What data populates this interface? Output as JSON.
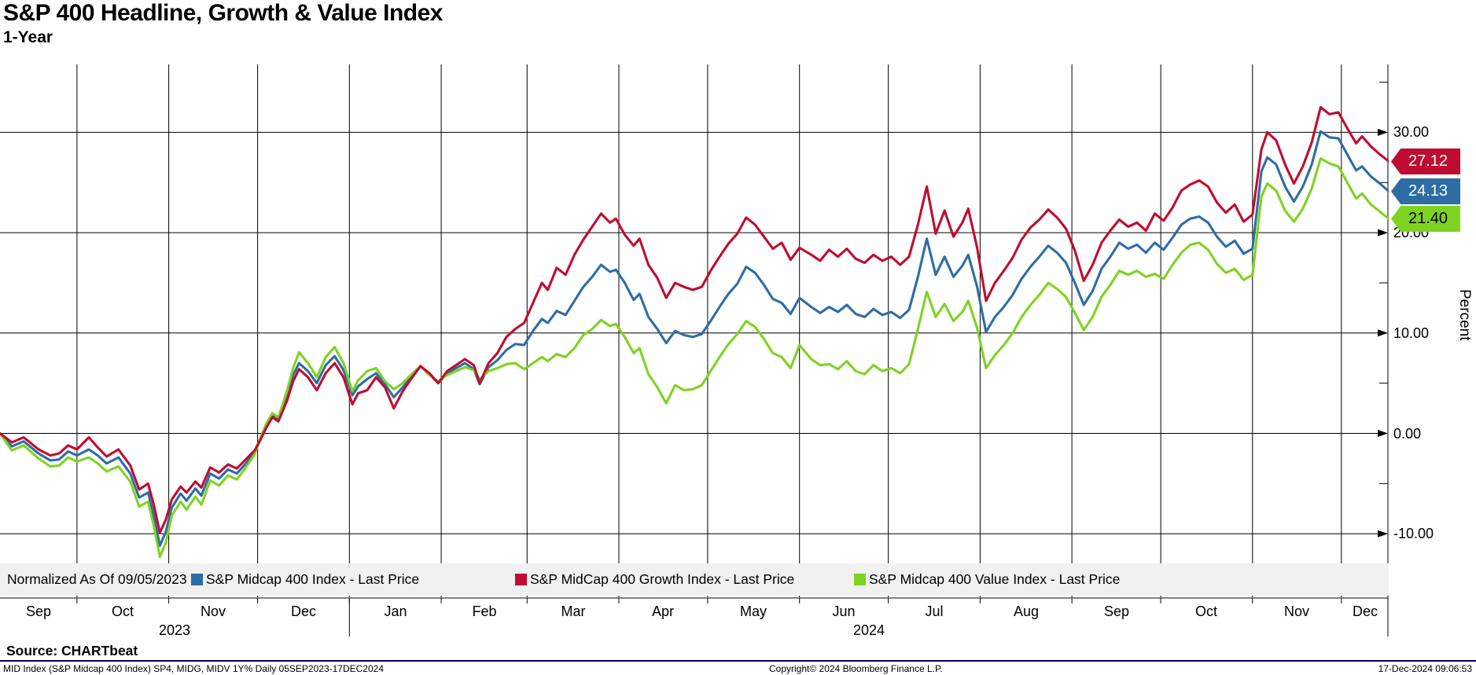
{
  "header": {
    "title": "S&P 400 Headline, Growth & Value Index",
    "subtitle": "1-Year"
  },
  "y_axis": {
    "label": "Percent",
    "tick_labels": [
      "30.00",
      "20.00",
      "10.00",
      "0.00",
      "-10.00"
    ]
  },
  "x_axis": {
    "month_labels": [
      "Sep",
      "Oct",
      "Nov",
      "Dec",
      "Jan",
      "Feb",
      "Mar",
      "Apr",
      "May",
      "Jun",
      "Jul",
      "Aug",
      "Sep",
      "Oct",
      "Nov",
      "Dec"
    ],
    "year_labels": [
      "2023",
      "2024"
    ]
  },
  "price_tags": [
    {
      "value": "27.12",
      "color": "#c00c30",
      "text_color": "#ffffff"
    },
    {
      "value": "24.13",
      "color": "#2e6da4",
      "text_color": "#ffffff"
    },
    {
      "value": "21.40",
      "color": "#7ed321",
      "text_color": "#000000"
    }
  ],
  "legend": {
    "note": "Normalized As Of 09/05/2023",
    "items": [
      {
        "label": "S&P Midcap 400 Index - Last Price",
        "color": "#2e6da4"
      },
      {
        "label": "S&P MidCap 400 Growth Index - Last Price",
        "color": "#c00c30"
      },
      {
        "label": "S&P Midcap 400 Value Index - Last Price",
        "color": "#7ed321"
      }
    ]
  },
  "footer": {
    "source": "Source: CHARTbeat",
    "meta": "MID Index (S&P Midcap 400 Index) SP4, MIDG, MIDV 1Y%  Daily 05SEP2023-17DEC2024",
    "copyright": "Copyright© 2024 Bloomberg Finance L.P.",
    "timestamp": "17-Dec-2024 09:06:53"
  },
  "chart_data": {
    "type": "line",
    "title": "S&P 400 Headline, Growth & Value Index (1-Year)",
    "xlabel": "Date (05SEP2023 - 17DEC2024)",
    "ylabel": "Percent",
    "x_unit": "days since 2023-09-05",
    "x_range": [
      0,
      469
    ],
    "ylim": [
      -16,
      37
    ],
    "grid": true,
    "legend_position": "bottom",
    "y_major": [
      30,
      20,
      10,
      0,
      -10
    ],
    "y_minor": [
      35,
      25,
      15,
      5,
      -5
    ],
    "month_gridline_days": [
      26,
      57,
      87,
      118,
      149,
      178,
      209,
      239,
      270,
      300,
      331,
      362,
      392,
      423,
      453
    ],
    "year_separator_day": 118,
    "days": [
      0,
      4,
      8,
      13,
      17,
      20,
      23,
      26,
      30,
      33,
      36,
      40,
      44,
      47,
      50,
      52,
      54,
      56,
      58,
      61,
      63,
      66,
      68,
      71,
      74,
      77,
      80,
      83,
      86,
      88,
      90,
      92,
      94,
      97,
      99,
      101,
      104,
      107,
      110,
      113,
      116,
      119,
      121,
      124,
      127,
      130,
      133,
      136,
      139,
      142,
      145,
      148,
      151,
      154,
      157,
      160,
      162,
      165,
      168,
      171,
      174,
      177,
      180,
      183,
      185,
      188,
      191,
      194,
      197,
      200,
      203,
      206,
      208,
      211,
      214,
      216,
      219,
      222,
      225,
      228,
      231,
      234,
      237,
      240,
      243,
      246,
      249,
      252,
      255,
      258,
      261,
      264,
      267,
      270,
      274,
      277,
      280,
      283,
      286,
      289,
      292,
      295,
      298,
      301,
      304,
      307,
      310,
      313,
      316,
      319,
      322,
      325,
      327,
      330,
      333,
      336,
      339,
      342,
      345,
      348,
      351,
      354,
      357,
      360,
      363,
      366,
      369,
      372,
      375,
      378,
      381,
      384,
      387,
      390,
      393,
      396,
      399,
      402,
      405,
      408,
      411,
      414,
      417,
      420,
      423,
      426,
      428,
      431,
      434,
      437,
      440,
      443,
      446,
      449,
      452,
      455,
      458,
      460,
      463,
      466,
      469
    ],
    "series": [
      {
        "name": "S&P Midcap 400 Index - Last Price",
        "color": "#2e6da4",
        "last": 24.13,
        "values": [
          0,
          -1.3,
          -0.8,
          -2.0,
          -2.7,
          -2.6,
          -1.8,
          -2.2,
          -1.6,
          -2.2,
          -3.0,
          -2.4,
          -4.0,
          -6.4,
          -5.9,
          -8.3,
          -11.2,
          -9.8,
          -7.4,
          -6.0,
          -6.7,
          -5.5,
          -6.2,
          -4.0,
          -4.5,
          -3.6,
          -4.0,
          -3.0,
          -1.9,
          -0.5,
          0.8,
          1.8,
          1.4,
          3.8,
          5.8,
          7.0,
          6.2,
          5.0,
          6.8,
          7.7,
          6.3,
          3.8,
          4.7,
          5.4,
          6.0,
          4.9,
          3.6,
          4.6,
          5.7,
          6.7,
          5.9,
          5.0,
          6.0,
          6.5,
          7.0,
          6.4,
          4.9,
          6.6,
          7.3,
          8.3,
          8.9,
          8.8,
          10.2,
          11.4,
          11.0,
          12.2,
          11.8,
          13.2,
          14.6,
          15.6,
          16.8,
          16.1,
          16.3,
          15.0,
          13.3,
          13.9,
          11.6,
          10.4,
          9.0,
          10.2,
          9.8,
          9.6,
          9.9,
          11.2,
          12.6,
          13.9,
          14.9,
          16.6,
          16.0,
          14.8,
          13.4,
          13.0,
          11.9,
          13.5,
          12.6,
          12.0,
          12.6,
          12.1,
          12.8,
          11.9,
          11.6,
          12.4,
          11.8,
          12.1,
          11.5,
          12.3,
          15.6,
          19.4,
          15.8,
          17.6,
          15.6,
          16.7,
          17.8,
          14.6,
          10.1,
          11.6,
          12.6,
          13.8,
          15.4,
          16.6,
          17.6,
          18.7,
          18.0,
          17.0,
          15.0,
          12.8,
          14.2,
          16.4,
          17.6,
          19.0,
          18.4,
          18.8,
          18.0,
          19.0,
          18.3,
          19.5,
          20.8,
          21.4,
          21.6,
          21.0,
          19.6,
          18.6,
          19.2,
          17.9,
          18.4,
          26.1,
          27.5,
          26.8,
          24.6,
          23.1,
          24.6,
          26.8,
          30.1,
          29.5,
          29.4,
          27.8,
          26.2,
          26.6,
          25.6,
          24.9,
          24.13
        ]
      },
      {
        "name": "S&P Midcap 400 Value Index - Last Price",
        "color": "#7ed321",
        "last": 21.4,
        "values": [
          0,
          -1.7,
          -1.2,
          -2.5,
          -3.3,
          -3.2,
          -2.4,
          -2.8,
          -2.4,
          -3.0,
          -3.8,
          -3.3,
          -4.8,
          -7.3,
          -6.8,
          -9.3,
          -12.3,
          -10.9,
          -8.2,
          -6.8,
          -7.6,
          -6.3,
          -7.1,
          -4.7,
          -5.2,
          -4.2,
          -4.6,
          -3.4,
          -2.1,
          -0.4,
          1.0,
          2.0,
          1.6,
          4.3,
          6.5,
          8.1,
          7.0,
          5.6,
          7.6,
          8.6,
          7.0,
          4.2,
          5.3,
          6.2,
          6.5,
          5.2,
          4.4,
          5.0,
          5.9,
          6.7,
          5.8,
          5.2,
          5.8,
          6.2,
          6.6,
          6.3,
          5.4,
          6.2,
          6.5,
          6.9,
          7.0,
          6.4,
          7.0,
          7.6,
          7.2,
          7.9,
          7.6,
          8.5,
          9.8,
          10.4,
          11.3,
          10.7,
          10.9,
          9.6,
          8.0,
          8.5,
          5.9,
          4.6,
          3.0,
          4.8,
          4.3,
          4.4,
          4.8,
          6.2,
          7.6,
          8.9,
          9.9,
          11.2,
          10.6,
          9.4,
          8.0,
          7.6,
          6.5,
          8.8,
          7.4,
          6.8,
          6.9,
          6.4,
          7.2,
          6.2,
          5.9,
          6.8,
          6.2,
          6.5,
          6.0,
          6.9,
          10.4,
          14.1,
          11.6,
          12.9,
          11.2,
          12.1,
          13.2,
          10.5,
          6.5,
          7.8,
          8.8,
          10.0,
          11.6,
          12.8,
          13.8,
          15.0,
          14.4,
          13.6,
          12.0,
          10.3,
          11.6,
          13.6,
          14.8,
          16.2,
          15.8,
          16.2,
          15.6,
          15.9,
          15.4,
          16.8,
          18.0,
          18.8,
          19.0,
          18.3,
          16.9,
          16.0,
          16.4,
          15.3,
          15.8,
          23.6,
          24.9,
          24.2,
          22.2,
          21.1,
          22.4,
          24.4,
          27.4,
          26.9,
          26.6,
          25.0,
          23.4,
          23.9,
          22.8,
          22.1,
          21.4
        ]
      },
      {
        "name": "S&P MidCap 400 Growth Index - Last Price",
        "color": "#c00c30",
        "last": 27.12,
        "values": [
          0,
          -0.9,
          -0.4,
          -1.6,
          -2.2,
          -2.0,
          -1.2,
          -1.6,
          -0.4,
          -1.4,
          -2.3,
          -1.6,
          -3.2,
          -5.6,
          -5.0,
          -7.2,
          -9.9,
          -8.6,
          -6.6,
          -5.3,
          -5.9,
          -4.8,
          -5.4,
          -3.4,
          -3.9,
          -3.1,
          -3.5,
          -2.6,
          -1.7,
          -0.6,
          0.6,
          1.6,
          1.2,
          3.3,
          5.2,
          6.4,
          5.6,
          4.3,
          6.0,
          7.0,
          5.6,
          2.9,
          4.0,
          4.3,
          5.6,
          4.6,
          2.5,
          4.2,
          5.5,
          6.7,
          6.0,
          5.0,
          6.2,
          6.8,
          7.4,
          6.8,
          5.0,
          7.0,
          8.0,
          9.6,
          10.4,
          11.0,
          13.0,
          15.0,
          14.3,
          16.5,
          15.8,
          17.8,
          19.3,
          20.6,
          21.9,
          21.0,
          21.4,
          19.8,
          18.7,
          19.4,
          16.8,
          15.5,
          13.5,
          15.0,
          14.6,
          14.3,
          14.6,
          16.2,
          17.6,
          18.9,
          19.9,
          21.5,
          20.8,
          19.6,
          18.4,
          19.0,
          17.3,
          18.5,
          17.8,
          17.2,
          18.3,
          17.6,
          18.4,
          17.4,
          17.0,
          17.8,
          17.2,
          17.6,
          16.8,
          17.6,
          20.8,
          24.6,
          19.9,
          22.2,
          19.6,
          21.0,
          22.4,
          18.5,
          13.2,
          15.0,
          16.2,
          17.5,
          19.3,
          20.5,
          21.3,
          22.3,
          21.5,
          20.4,
          18.2,
          15.2,
          16.8,
          19.0,
          20.2,
          21.3,
          20.6,
          21.0,
          20.2,
          21.9,
          21.2,
          22.5,
          24.2,
          24.8,
          25.2,
          24.6,
          23.0,
          22.0,
          22.8,
          21.1,
          21.8,
          28.3,
          30.0,
          29.2,
          26.8,
          24.9,
          26.6,
          29.0,
          32.5,
          31.8,
          32.0,
          30.4,
          28.9,
          29.6,
          28.6,
          27.8,
          27.12
        ]
      }
    ]
  }
}
